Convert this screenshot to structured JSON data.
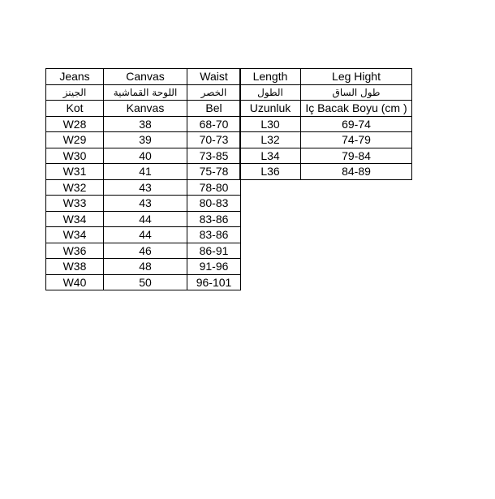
{
  "page": {
    "background_color": "#ffffff",
    "border_color": "#000000",
    "text_color": "#000000"
  },
  "left_table": {
    "headers_en": [
      "Jeans",
      "Canvas",
      "Waist"
    ],
    "headers_ar": [
      "الجينز",
      "اللوحة القماشية",
      "الخصر"
    ],
    "headers_tr": [
      "Kot",
      "Kanvas",
      "Bel"
    ],
    "rows": [
      [
        "W28",
        "38",
        "68-70"
      ],
      [
        "W29",
        "39",
        "70-73"
      ],
      [
        "W30",
        "40",
        "73-85"
      ],
      [
        "W31",
        "41",
        "75-78"
      ],
      [
        "W32",
        "43",
        "78-80"
      ],
      [
        "W33",
        "43",
        "80-83"
      ],
      [
        "W34",
        "44",
        "83-86"
      ],
      [
        "W34",
        "44",
        "83-86"
      ],
      [
        "W36",
        "46",
        "86-91"
      ],
      [
        "W38",
        "48",
        "91-96"
      ],
      [
        "W40",
        "50",
        "96-101"
      ]
    ]
  },
  "right_table": {
    "headers_en": [
      "Length",
      "Leg Hight"
    ],
    "headers_ar": [
      "الطول",
      "طول الساق"
    ],
    "headers_tr": [
      "Uzunluk",
      "Iç Bacak Boyu (cm )"
    ],
    "rows": [
      [
        "L30",
        "69-74"
      ],
      [
        "L32",
        "74-79"
      ],
      [
        "L34",
        "79-84"
      ],
      [
        "L36",
        "84-89"
      ]
    ]
  }
}
